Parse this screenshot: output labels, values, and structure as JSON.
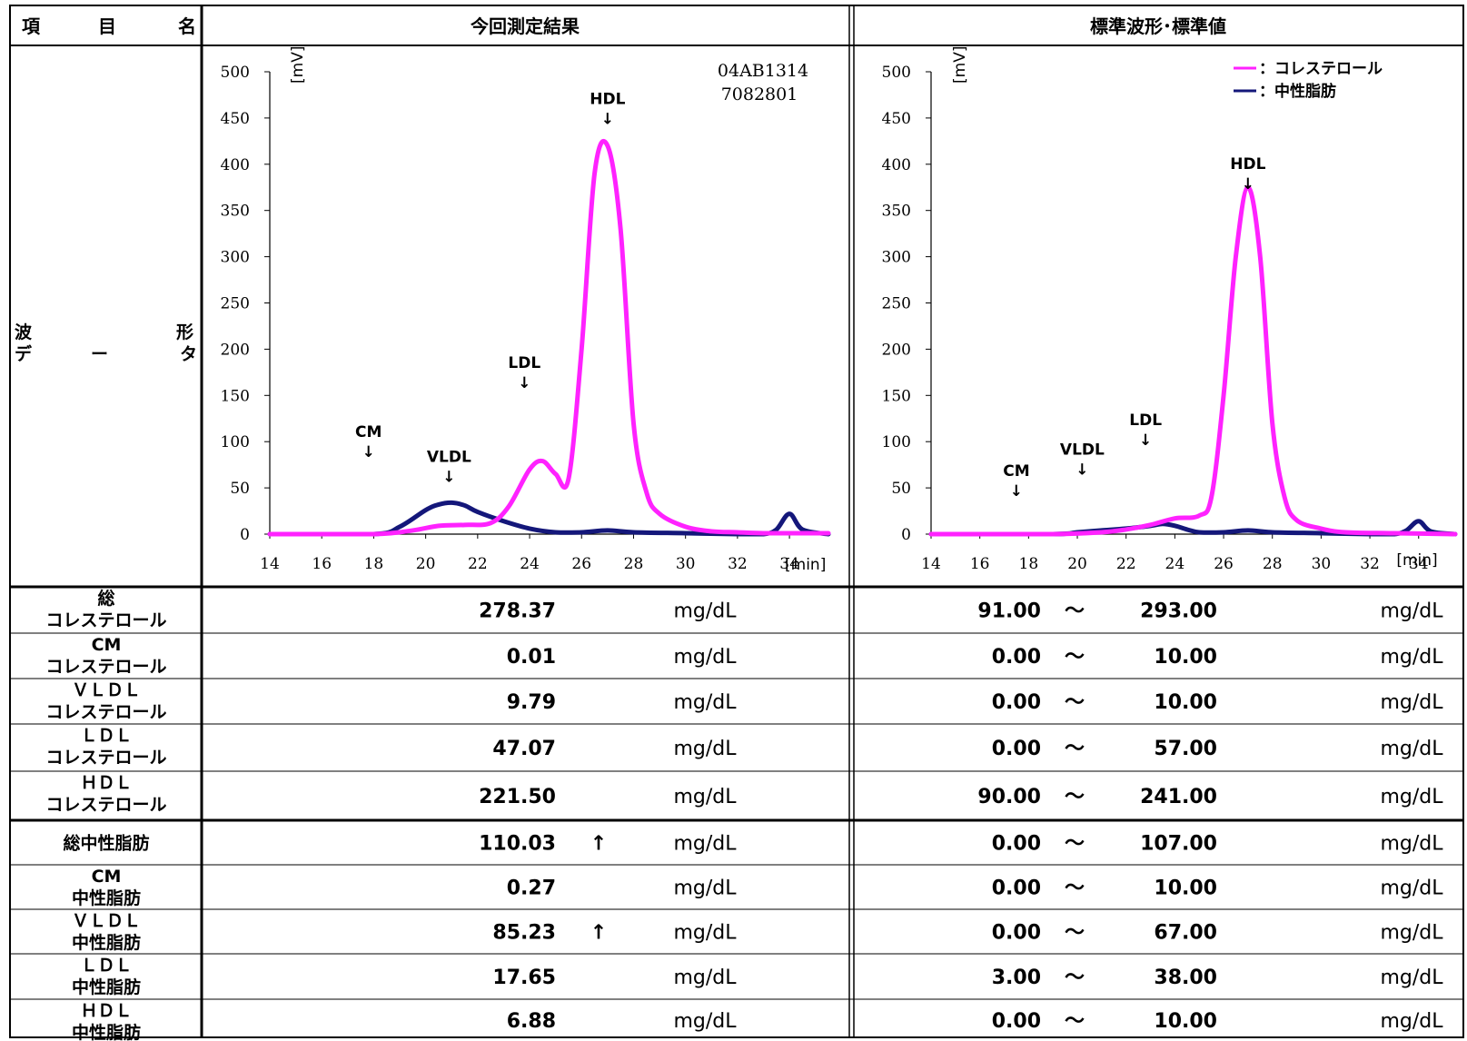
{
  "header": {
    "item_label": "項　　目　　名",
    "item_chars": [
      "項",
      "目",
      "名"
    ],
    "measured_title": "今回測定結果",
    "standard_title": "標準波形･標準値"
  },
  "waveform_label": {
    "line1_left": "波",
    "line1_right": "形",
    "line2_left": "デ",
    "line2_mid": "ー",
    "line2_right": "タ"
  },
  "charts": {
    "measured": {
      "sample_id_line1": "04AB1314",
      "sample_id_line2": "7082801",
      "y_unit": "[mV]",
      "x_unit": "[min]",
      "peak_labels": [
        {
          "text": "CM",
          "x": 17.8,
          "y": 105
        },
        {
          "text": "VLDL",
          "x": 20.9,
          "y": 78
        },
        {
          "text": "LDL",
          "x": 23.8,
          "y": 180
        },
        {
          "text": "HDL",
          "x": 27.0,
          "y": 465
        }
      ]
    },
    "standard": {
      "y_unit": "[mV]",
      "x_unit": "[min]",
      "legend": [
        {
          "label": "：コレステロール",
          "color": "#ff22ff"
        },
        {
          "label": "：中性脂肪",
          "color": "#14177a"
        }
      ],
      "peak_labels": [
        {
          "text": "CM",
          "x": 17.5,
          "y": 63
        },
        {
          "text": "VLDL",
          "x": 20.2,
          "y": 86
        },
        {
          "text": "LDL",
          "x": 22.8,
          "y": 118
        },
        {
          "text": "HDL",
          "x": 27.0,
          "y": 395
        }
      ]
    }
  },
  "chart_data": [
    {
      "type": "line",
      "xlabel": "[min]",
      "ylabel": "[mV]",
      "xlim": [
        14,
        35.5
      ],
      "ylim": [
        0,
        500
      ],
      "xticks": [
        14,
        16,
        18,
        20,
        22,
        24,
        26,
        28,
        30,
        32,
        34
      ],
      "yticks": [
        0,
        50,
        100,
        150,
        200,
        250,
        300,
        350,
        400,
        450,
        500
      ],
      "series": [
        {
          "name": "コレステロール",
          "color": "#ff22ff",
          "x": [
            14,
            18,
            19.5,
            20.5,
            21.5,
            22.5,
            23.2,
            24.0,
            24.5,
            25.0,
            25.5,
            26.0,
            26.5,
            27.0,
            27.5,
            28.0,
            28.5,
            29.0,
            30.0,
            31.0,
            32.0,
            33.0,
            34.0,
            35.5
          ],
          "y": [
            0,
            0,
            4,
            9,
            10,
            12,
            30,
            70,
            79,
            65,
            60,
            200,
            390,
            420,
            330,
            120,
            45,
            22,
            8,
            3,
            2,
            1,
            1,
            1
          ]
        },
        {
          "name": "中性脂肪",
          "color": "#14177a",
          "x": [
            14,
            18,
            19,
            20,
            20.5,
            21,
            21.5,
            22,
            23,
            24,
            25,
            26,
            27,
            28,
            30,
            32,
            33,
            33.5,
            34.0,
            34.5,
            35.5
          ],
          "y": [
            0,
            0,
            8,
            26,
            32,
            34,
            31,
            24,
            14,
            6,
            2,
            2,
            4,
            2,
            1,
            0,
            0,
            5,
            22,
            5,
            0
          ]
        }
      ]
    },
    {
      "type": "line",
      "xlabel": "[min]",
      "ylabel": "[mV]",
      "xlim": [
        14,
        35.5
      ],
      "ylim": [
        0,
        500
      ],
      "xticks": [
        14,
        16,
        18,
        20,
        22,
        24,
        26,
        28,
        30,
        32,
        34
      ],
      "yticks": [
        0,
        50,
        100,
        150,
        200,
        250,
        300,
        350,
        400,
        450,
        500
      ],
      "series": [
        {
          "name": "コレステロール",
          "color": "#ff22ff",
          "x": [
            14,
            19,
            21,
            22,
            23,
            24,
            25,
            25.5,
            26.0,
            26.5,
            27.0,
            27.5,
            28.0,
            28.5,
            29.0,
            30.0,
            31.0,
            33.0,
            35.5
          ],
          "y": [
            0,
            0,
            2,
            5,
            10,
            17,
            20,
            40,
            150,
            300,
            375,
            300,
            120,
            40,
            15,
            6,
            2,
            1,
            0
          ]
        },
        {
          "name": "中性脂肪",
          "color": "#14177a",
          "x": [
            14,
            19,
            20,
            21,
            22,
            23,
            23.5,
            24,
            24.5,
            25,
            26,
            27,
            28,
            30,
            32,
            33,
            33.5,
            34.0,
            34.5,
            35.5
          ],
          "y": [
            0,
            0,
            2,
            4,
            6,
            9,
            11,
            9,
            5,
            2,
            2,
            4,
            2,
            1,
            0,
            0,
            4,
            14,
            3,
            0
          ]
        }
      ]
    }
  ],
  "rows": [
    {
      "label1": "総",
      "label2": "コレステロール",
      "value": "278.37",
      "flag": "",
      "unit": "mg/dL",
      "range_min": "91.00",
      "tilde": "～",
      "range_max": "293.00",
      "range_unit": "mg/dL"
    },
    {
      "label1": "CM",
      "label2": "コレステロール",
      "value": "0.01",
      "flag": "",
      "unit": "mg/dL",
      "range_min": "0.00",
      "tilde": "～",
      "range_max": "10.00",
      "range_unit": "mg/dL"
    },
    {
      "label1": "ＶＬＤＬ",
      "label2": "コレステロール",
      "value": "9.79",
      "flag": "",
      "unit": "mg/dL",
      "range_min": "0.00",
      "tilde": "～",
      "range_max": "10.00",
      "range_unit": "mg/dL"
    },
    {
      "label1": "ＬＤＬ",
      "label2": "コレステロール",
      "value": "47.07",
      "flag": "",
      "unit": "mg/dL",
      "range_min": "0.00",
      "tilde": "～",
      "range_max": "57.00",
      "range_unit": "mg/dL"
    },
    {
      "label1": "ＨＤＬ",
      "label2": "コレステロール",
      "value": "221.50",
      "flag": "",
      "unit": "mg/dL",
      "range_min": "90.00",
      "tilde": "～",
      "range_max": "241.00",
      "range_unit": "mg/dL"
    },
    {
      "label1": "総中性脂肪",
      "label2": "",
      "value": "110.03",
      "flag": "↑",
      "unit": "mg/dL",
      "range_min": "0.00",
      "tilde": "～",
      "range_max": "107.00",
      "range_unit": "mg/dL"
    },
    {
      "label1": "CM",
      "label2": "中性脂肪",
      "value": "0.27",
      "flag": "",
      "unit": "mg/dL",
      "range_min": "0.00",
      "tilde": "～",
      "range_max": "10.00",
      "range_unit": "mg/dL"
    },
    {
      "label1": "ＶＬＤＬ",
      "label2": "中性脂肪",
      "value": "85.23",
      "flag": "↑",
      "unit": "mg/dL",
      "range_min": "0.00",
      "tilde": "～",
      "range_max": "67.00",
      "range_unit": "mg/dL"
    },
    {
      "label1": "ＬＤＬ",
      "label2": "中性脂肪",
      "value": "17.65",
      "flag": "",
      "unit": "mg/dL",
      "range_min": "3.00",
      "tilde": "～",
      "range_max": "38.00",
      "range_unit": "mg/dL"
    },
    {
      "label1": "ＨＤＬ",
      "label2": "中性脂肪",
      "value": "6.88",
      "flag": "",
      "unit": "mg/dL",
      "range_min": "0.00",
      "tilde": "～",
      "range_max": "10.00",
      "range_unit": "mg/dL"
    }
  ]
}
